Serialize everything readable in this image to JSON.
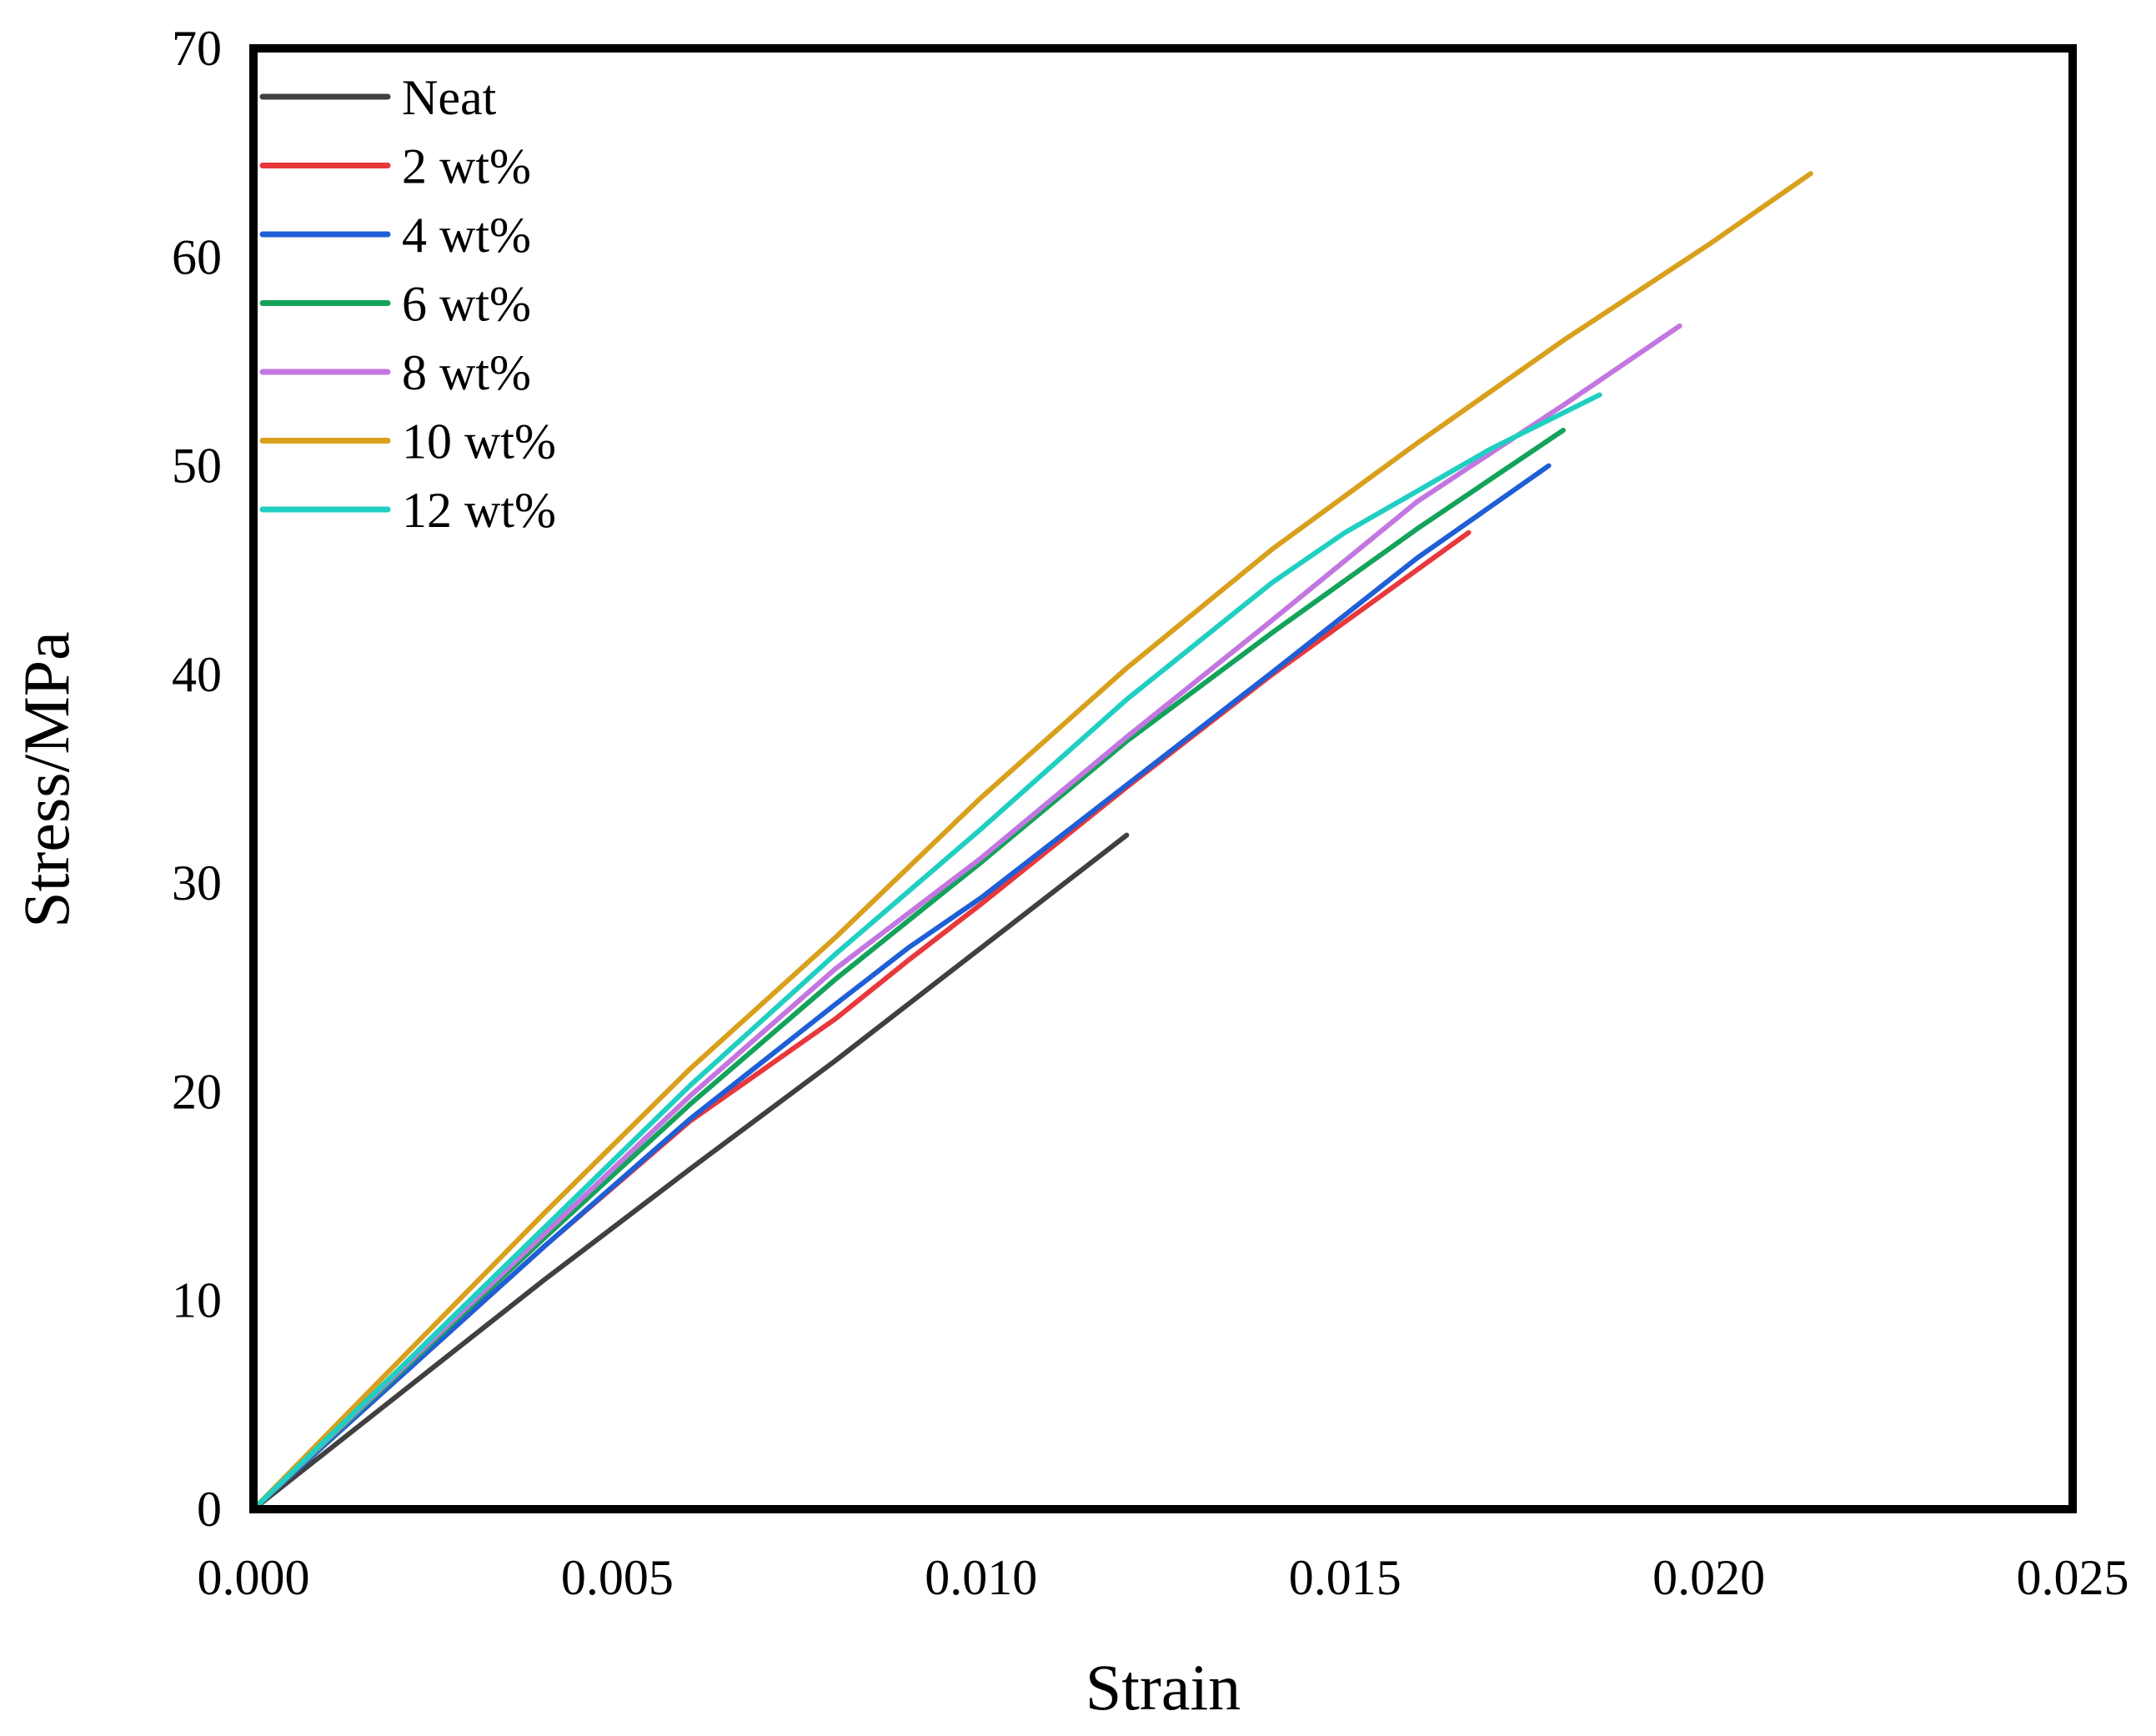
{
  "chart_data": {
    "type": "line",
    "title": "",
    "xlabel": "Strain",
    "ylabel": "Stress/MPa",
    "xlim": [
      0,
      0.025
    ],
    "ylim": [
      0,
      70
    ],
    "xticks": [
      0.0,
      0.005,
      0.01,
      0.015,
      0.02,
      0.025
    ],
    "xtick_labels": [
      "0.000",
      "0.005",
      "0.010",
      "0.015",
      "0.020",
      "0.025"
    ],
    "yticks": [
      0,
      10,
      20,
      30,
      40,
      50,
      60,
      70
    ],
    "ytick_labels": [
      "0",
      "10",
      "20",
      "30",
      "40",
      "50",
      "60",
      "70"
    ],
    "grid": false,
    "legend_position": "top-left",
    "series": [
      {
        "name": "Neat",
        "color": "#404040",
        "x": [
          0,
          0.002,
          0.004,
          0.006,
          0.008,
          0.01,
          0.012
        ],
        "y": [
          0,
          5.5,
          11.0,
          16.3,
          21.5,
          26.9,
          32.3
        ]
      },
      {
        "name": "2 wt%",
        "color": "#e8383c",
        "x": [
          0,
          0.002,
          0.004,
          0.006,
          0.008,
          0.009,
          0.01,
          0.012,
          0.014,
          0.0167
        ],
        "y": [
          0,
          6.3,
          12.6,
          18.6,
          23.5,
          26.3,
          29.0,
          34.6,
          40.0,
          46.8
        ]
      },
      {
        "name": "4 wt%",
        "color": "#1f5fd6",
        "x": [
          0,
          0.002,
          0.004,
          0.006,
          0.008,
          0.009,
          0.01,
          0.012,
          0.014,
          0.016,
          0.0178
        ],
        "y": [
          0,
          6.3,
          12.6,
          18.7,
          24.2,
          26.9,
          29.3,
          34.7,
          40.1,
          45.6,
          50.0
        ]
      },
      {
        "name": "6 wt%",
        "color": "#13a35a",
        "x": [
          0,
          0.002,
          0.004,
          0.006,
          0.008,
          0.01,
          0.012,
          0.014,
          0.016,
          0.018
        ],
        "y": [
          0,
          6.5,
          13.0,
          19.4,
          25.4,
          31.0,
          36.8,
          42.0,
          47.0,
          51.7
        ]
      },
      {
        "name": "8 wt%",
        "color": "#c376e0",
        "x": [
          0,
          0.002,
          0.004,
          0.006,
          0.008,
          0.01,
          0.012,
          0.014,
          0.016,
          0.018,
          0.0196
        ],
        "y": [
          0,
          6.6,
          13.2,
          19.8,
          25.9,
          31.2,
          37.0,
          42.6,
          48.3,
          52.9,
          56.7
        ]
      },
      {
        "name": "10 wt%",
        "color": "#d9a01c",
        "x": [
          0,
          0.002,
          0.004,
          0.006,
          0.008,
          0.01,
          0.012,
          0.014,
          0.016,
          0.018,
          0.02,
          0.0214
        ],
        "y": [
          0,
          7.1,
          14.2,
          21.1,
          27.4,
          34.1,
          40.3,
          46.0,
          51.1,
          56.0,
          60.6,
          64.0
        ]
      },
      {
        "name": "12 wt%",
        "color": "#1fcfc2",
        "x": [
          0,
          0.002,
          0.004,
          0.006,
          0.008,
          0.01,
          0.012,
          0.014,
          0.015,
          0.016,
          0.017,
          0.0185
        ],
        "y": [
          0,
          6.7,
          13.5,
          20.3,
          26.6,
          32.6,
          38.8,
          44.4,
          46.8,
          48.8,
          50.8,
          53.4
        ]
      }
    ]
  }
}
